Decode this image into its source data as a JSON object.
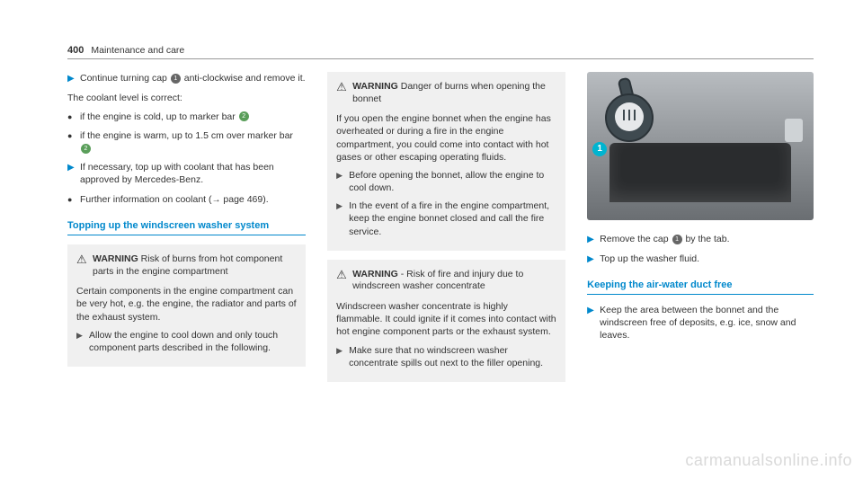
{
  "page": {
    "number": "400",
    "title": "Maintenance and care"
  },
  "col1": {
    "step1_a": "Continue turning cap ",
    "step1_b": " anti-clockwise and remove it.",
    "circ1": "1",
    "para1": "The coolant level is correct:",
    "bullet1_a": "if the engine is cold, up to marker bar ",
    "circ2a": "2",
    "bullet2_a": "if the engine is warm, up to 1.5 cm over marker bar ",
    "circ2b": "2",
    "step2": "If necessary, top up with coolant that has been approved by Mercedes-Benz.",
    "bullet3_a": "Further information on coolant (",
    "bullet3_b": " page 469).",
    "heading1": "Topping up the windscreen washer system",
    "warn1_title_strong": "WARNING",
    "warn1_title_rest": " Risk of burns from hot com­ponent parts in the engine compartment",
    "warn1_para": "Certain components in the engine compart­ment can be very hot, e.g. the engine, the radiator and parts of the exhaust system.",
    "warn1_step": "Allow the engine to cool down and only touch component parts described in the following."
  },
  "col2": {
    "warn2_title_strong": "WARNING",
    "warn2_title_rest": " Danger of burns when open­ing the bonnet",
    "warn2_para": "If you open the engine bonnet when the engine has overheated or during a fire in the engine compartment, you could come into contact with hot gases or other escaping operating fluids.",
    "warn2_step1": "Before opening the bonnet, allow the engine to cool down.",
    "warn2_step2": "In the event of a fire in the engine com­partment, keep the engine bonnet closed and call the fire service.",
    "warn3_title_strong": "WARNING",
    "warn3_title_rest": " ‑ Risk of fire and injury due to windscreen washer concentrate",
    "warn3_para": "Windscreen washer concentrate is highly flammable. It could ignite if it comes into contact with hot engine component parts or the exhaust system.",
    "warn3_step": "Make sure that no windscreen washer concentrate spills out next to the filler opening."
  },
  "col3": {
    "callout1": "1",
    "step1_a": "Remove the cap ",
    "circ1": "1",
    "step1_b": " by the tab.",
    "step2": "Top up the washer fluid.",
    "heading2": "Keeping the air-water duct free",
    "step3": "Keep the area between the bonnet and the windscreen free of deposits, e.g. ice, snow and leaves."
  },
  "watermark": "carmanualsonline.info"
}
